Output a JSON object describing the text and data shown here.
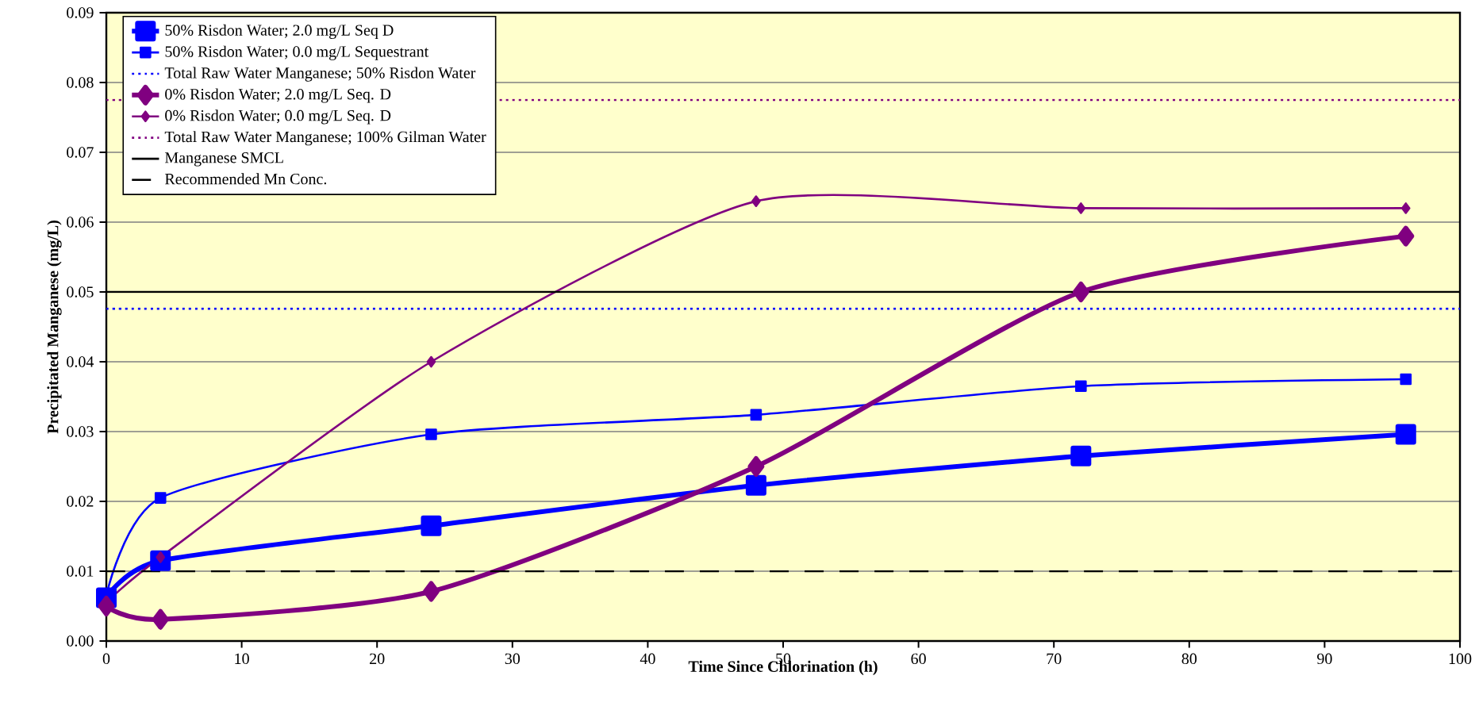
{
  "chart_data": {
    "type": "line",
    "xlabel": "Time Since Chlorination (h)",
    "ylabel": "Precipitated Manganese (mg/L)",
    "xlim": [
      0,
      100
    ],
    "xticks": [
      0,
      10,
      20,
      30,
      40,
      50,
      60,
      70,
      80,
      90,
      100
    ],
    "ylim": [
      0,
      0.09
    ],
    "yticks": [
      {
        "value": 0,
        "label": "0.00"
      },
      {
        "value": 0.01,
        "label": "0.01"
      },
      {
        "value": 0.02,
        "label": "0.02"
      },
      {
        "value": 0.03,
        "label": "0.03"
      },
      {
        "value": 0.04,
        "label": "0.04"
      },
      {
        "value": 0.05,
        "label": "0.05"
      },
      {
        "value": 0.06,
        "label": "0.06"
      },
      {
        "value": 0.07,
        "label": "0.07"
      },
      {
        "value": 0.08,
        "label": "0.08"
      },
      {
        "value": 0.09,
        "label": "0.09"
      }
    ],
    "grid": "y",
    "legend": "top left",
    "series": [
      {
        "name": "50% Risdon Water; 2.0 mg/L Seq D",
        "color": "#0000ff",
        "marker": "square",
        "line_style": "solid",
        "x": [
          0,
          4,
          24,
          48,
          72,
          96
        ],
        "values": [
          0.0062,
          0.0115,
          0.0165,
          0.0223,
          0.0265,
          0.0296
        ]
      },
      {
        "name": "50% Risdon Water; 0.0 mg/L Sequestrant",
        "color": "#0000ff",
        "marker": "square",
        "line_style": "solid",
        "x": [
          0,
          4,
          24,
          48,
          72,
          96
        ],
        "values": [
          0.0065,
          0.0205,
          0.0296,
          0.0324,
          0.0365,
          0.0375
        ]
      },
      {
        "name": "Total Raw Water Manganese; 50% Risdon Water",
        "color": "#0000ff",
        "marker": "none",
        "line_style": "dotted",
        "x": [
          0,
          100
        ],
        "values": [
          0.0476,
          0.0476
        ]
      },
      {
        "name": "0% Risdon Water; 2.0 mg/L Seq. D",
        "color": "#800080",
        "marker": "diamond",
        "line_style": "solid",
        "x": [
          0,
          4,
          24,
          48,
          72,
          96
        ],
        "values": [
          0.005,
          0.0031,
          0.0071,
          0.025,
          0.05,
          0.058
        ]
      },
      {
        "name": "0% Risdon Water; 0.0 mg/L Seq. D",
        "color": "#800080",
        "marker": "diamond",
        "line_style": "solid",
        "x": [
          0,
          4,
          24,
          48,
          72,
          96
        ],
        "values": [
          0.0055,
          0.012,
          0.04,
          0.063,
          0.062,
          0.062
        ]
      },
      {
        "name": "Total Raw Water Manganese; 100% Gilman Water",
        "color": "#800080",
        "marker": "none",
        "line_style": "dotted",
        "x": [
          0,
          100
        ],
        "values": [
          0.0775,
          0.0775
        ]
      },
      {
        "name": "Manganese SMCL",
        "color": "#000000",
        "marker": "none",
        "line_style": "solid",
        "x": [
          0,
          100
        ],
        "values": [
          0.05,
          0.05
        ]
      },
      {
        "name": "Recommended Mn Conc.",
        "color": "#000000",
        "marker": "none",
        "line_style": "dashed",
        "x": [
          0,
          100
        ],
        "values": [
          0.01,
          0.01
        ]
      }
    ]
  }
}
